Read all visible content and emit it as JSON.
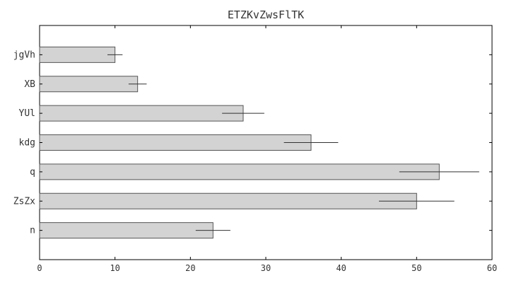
{
  "chart_data": {
    "type": "bar",
    "orientation": "horizontal",
    "title": "ETZKvZwsFlTK",
    "xlabel": "",
    "ylabel": "",
    "categories": [
      "jgVh",
      "XB",
      "YUl",
      "kdg",
      "q",
      "ZsZx",
      "n"
    ],
    "values": [
      10,
      13,
      27,
      36,
      53,
      50,
      23
    ],
    "errors": [
      1.0,
      1.2,
      2.8,
      3.6,
      5.3,
      5.0,
      2.3
    ],
    "xlim": [
      0,
      60
    ],
    "xticks": [
      0,
      10,
      20,
      30,
      40,
      50,
      60
    ],
    "grid": false,
    "colors": {
      "bar_fill": "#d3d3d3",
      "bar_edge": "#555555",
      "error_bar": "#333333",
      "axis": "#000000",
      "text": "#333333"
    }
  }
}
